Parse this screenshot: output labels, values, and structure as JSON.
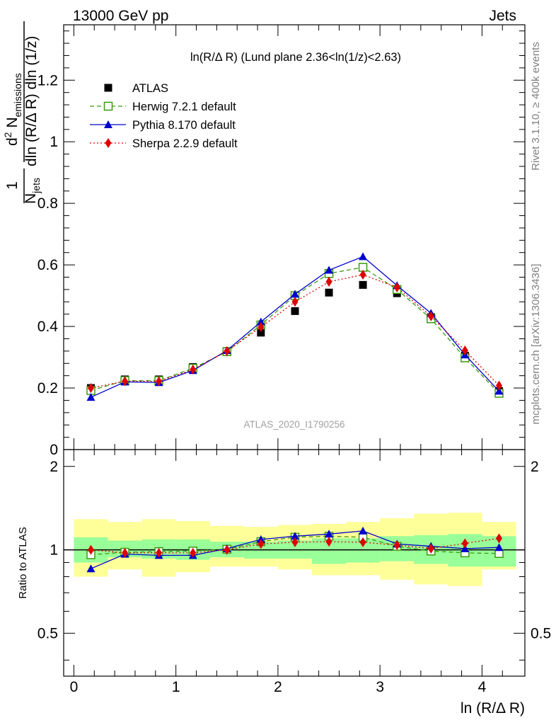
{
  "header": {
    "left": "13000 GeV pp",
    "right": "Jets"
  },
  "side_labels": {
    "rivet": "Rivet 3.1.10, ≥ 400k events",
    "mcplots": "mcplots.cern.ch [arXiv:1306.3436]"
  },
  "main_plot": {
    "title": "ln(R/Δ R) (Lund plane 2.36<ln(1/z)<2.63)",
    "watermark": "ATLAS_2020_I1790256",
    "ylabel": {
      "frac_num": "1",
      "frac_den_a": "N",
      "frac_den_sub": "jets",
      "deriv_num_a": "d",
      "deriv_num_sup": "2",
      "deriv_num_b": " N",
      "deriv_num_sub": "emissions",
      "deriv_den": "dln (R/Δ R) dln (1/z)"
    },
    "yticks": [
      {
        "v": 0,
        "label": "0"
      },
      {
        "v": 0.2,
        "label": "0.2"
      },
      {
        "v": 0.4,
        "label": "0.4"
      },
      {
        "v": 0.6,
        "label": "0.6"
      },
      {
        "v": 0.8,
        "label": "0.8"
      },
      {
        "v": 1.0,
        "label": "1"
      },
      {
        "v": 1.2,
        "label": "1.2"
      }
    ]
  },
  "ratio_plot": {
    "ylabel": "Ratio to ATLAS",
    "yticks_left": [
      {
        "v": 0.5,
        "label": "0.5"
      },
      {
        "v": 1.0,
        "label": "1"
      },
      {
        "v": 2.0,
        "label": "2"
      }
    ],
    "yticks_right": [
      {
        "v": 0.5,
        "label": "0.5"
      },
      {
        "v": 2.0,
        "label": "2"
      }
    ]
  },
  "xaxis": {
    "label": "ln (R/Δ R)",
    "ticks": [
      {
        "v": 0,
        "label": "0"
      },
      {
        "v": 1,
        "label": "1"
      },
      {
        "v": 2,
        "label": "2"
      },
      {
        "v": 3,
        "label": "3"
      },
      {
        "v": 4,
        "label": "4"
      }
    ]
  },
  "legend": [
    {
      "name": "ATLAS",
      "color": "#000000",
      "marker": "square-filled",
      "line": "none"
    },
    {
      "name": "Herwig 7.2.1 default",
      "color": "#3a9a10",
      "marker": "square-open",
      "line": "dashed"
    },
    {
      "name": "Pythia 8.170 default",
      "color": "#0000cc",
      "marker": "triangle",
      "line": "solid"
    },
    {
      "name": "Sherpa 2.2.9 default",
      "color": "#dd0000",
      "marker": "diamond",
      "line": "dotted"
    }
  ],
  "chart_data": [
    {
      "type": "scatter",
      "title": "ln(R/Δ R) (Lund plane 2.36<ln(1/z)<2.63)",
      "xlabel": "ln (R/Δ R)",
      "ylabel": "1/N_jets d²N_emissions / dln (R/Δ R) dln (1/z)",
      "xlim": [
        -0.1,
        4.42
      ],
      "ylim": [
        0,
        1.38
      ],
      "x": [
        0.167,
        0.5,
        0.833,
        1.167,
        1.5,
        1.833,
        2.167,
        2.5,
        2.833,
        3.167,
        3.5,
        3.833,
        4.167
      ],
      "bin_edges": [
        0,
        0.333,
        0.667,
        1.0,
        1.333,
        1.667,
        2.0,
        2.333,
        2.667,
        3.0,
        3.333,
        3.667,
        4.0,
        4.333
      ],
      "series": [
        {
          "name": "ATLAS",
          "values": [
            0.2,
            0.228,
            0.228,
            0.268,
            0.32,
            0.38,
            0.45,
            0.51,
            0.535,
            0.508,
            0.43,
            0.305,
            0.19
          ]
        },
        {
          "name": "Herwig 7.2.1 default",
          "values": [
            0.192,
            0.224,
            0.224,
            0.264,
            0.318,
            0.405,
            0.5,
            0.572,
            0.592,
            0.52,
            0.425,
            0.298,
            0.183
          ]
        },
        {
          "name": "Pythia 8.170 default",
          "values": [
            0.17,
            0.22,
            0.218,
            0.257,
            0.322,
            0.415,
            0.505,
            0.583,
            0.627,
            0.533,
            0.443,
            0.308,
            0.19
          ]
        },
        {
          "name": "Sherpa 2.2.9 default",
          "values": [
            0.2,
            0.222,
            0.222,
            0.26,
            0.32,
            0.398,
            0.48,
            0.545,
            0.568,
            0.527,
            0.433,
            0.322,
            0.208
          ]
        }
      ]
    },
    {
      "type": "line",
      "title": "",
      "xlabel": "ln (R/Δ R)",
      "ylabel": "Ratio to ATLAS",
      "xlim": [
        -0.1,
        4.42
      ],
      "ylim": [
        0.35,
        2.3
      ],
      "y_scale": "log",
      "x": [
        0.167,
        0.5,
        0.833,
        1.167,
        1.5,
        1.833,
        2.167,
        2.5,
        2.833,
        3.167,
        3.5,
        3.833,
        4.167
      ],
      "bin_edges": [
        0,
        0.333,
        0.667,
        1.0,
        1.333,
        1.667,
        2.0,
        2.333,
        2.667,
        3.0,
        3.333,
        3.667,
        4.0,
        4.333
      ],
      "bands": {
        "inner_color": "#99ff99",
        "outer_color": "#ffff99",
        "inner_lo": [
          0.9,
          0.94,
          0.93,
          0.92,
          0.94,
          0.93,
          0.93,
          0.89,
          0.9,
          0.91,
          0.89,
          0.87,
          0.87
        ],
        "inner_hi": [
          1.11,
          1.08,
          1.09,
          1.09,
          1.07,
          1.07,
          1.08,
          1.1,
          1.1,
          1.12,
          1.13,
          1.14,
          1.12
        ],
        "outer_lo": [
          0.8,
          0.85,
          0.8,
          0.83,
          0.87,
          0.87,
          0.85,
          0.81,
          0.81,
          0.78,
          0.75,
          0.74,
          0.85
        ],
        "outer_hi": [
          1.29,
          1.26,
          1.29,
          1.27,
          1.22,
          1.21,
          1.23,
          1.24,
          1.26,
          1.3,
          1.35,
          1.36,
          1.26
        ]
      },
      "series": [
        {
          "name": "Herwig 7.2.1 default",
          "values": [
            0.96,
            0.98,
            0.985,
            0.99,
            1.005,
            1.07,
            1.11,
            1.12,
            1.11,
            1.03,
            0.99,
            0.975,
            0.97
          ]
        },
        {
          "name": "Pythia 8.170 default",
          "values": [
            0.855,
            0.965,
            0.955,
            0.955,
            1.01,
            1.09,
            1.12,
            1.14,
            1.17,
            1.05,
            1.03,
            1.01,
            1.02
          ]
        },
        {
          "name": "Sherpa 2.2.9 default",
          "values": [
            1.0,
            0.975,
            0.975,
            0.975,
            1.0,
            1.05,
            1.065,
            1.07,
            1.065,
            1.04,
            1.01,
            1.055,
            1.1
          ]
        }
      ]
    }
  ]
}
